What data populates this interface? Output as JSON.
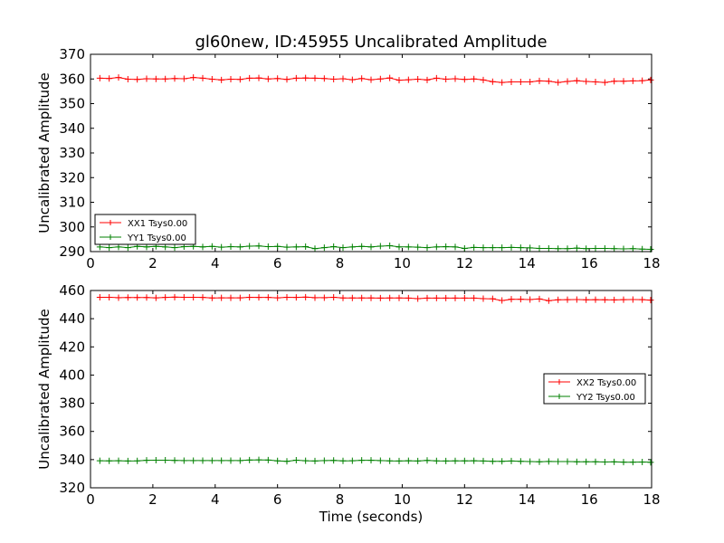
{
  "figure": {
    "title": "gl60new, ID:45955 Uncalibrated Amplitude"
  },
  "colors": {
    "series_red": "#ff0000",
    "series_green": "#008000",
    "frame": "#000000",
    "background": "#ffffff"
  },
  "chart_data": [
    {
      "type": "line",
      "title": "gl60new, ID:45955 Uncalibrated Amplitude",
      "xlabel": "",
      "ylabel": "Uncalibrated Amplitude",
      "xlim": [
        0,
        18
      ],
      "ylim": [
        290,
        370
      ],
      "xticks": [
        0,
        2,
        4,
        6,
        8,
        10,
        12,
        14,
        16,
        18
      ],
      "yticks": [
        290,
        300,
        310,
        320,
        330,
        340,
        350,
        360,
        370
      ],
      "grid": false,
      "legend_position": "lower-left",
      "marker": "+",
      "series": [
        {
          "name": "XX1 Tsys0.00",
          "color": "#ff0000",
          "x": [
            0.3,
            0.6,
            0.9,
            1.2,
            1.5,
            1.8,
            2.1,
            2.4,
            2.7,
            3.0,
            3.3,
            3.6,
            3.9,
            4.2,
            4.5,
            4.8,
            5.1,
            5.4,
            5.7,
            6.0,
            6.3,
            6.6,
            6.9,
            7.2,
            7.5,
            7.8,
            8.1,
            8.4,
            8.7,
            9.0,
            9.3,
            9.6,
            9.9,
            10.2,
            10.5,
            10.8,
            11.1,
            11.4,
            11.7,
            12.0,
            12.3,
            12.6,
            12.9,
            13.2,
            13.5,
            13.8,
            14.1,
            14.4,
            14.7,
            15.0,
            15.3,
            15.6,
            15.9,
            16.2,
            16.5,
            16.8,
            17.1,
            17.4,
            17.7,
            17.97
          ],
          "y": [
            360.3,
            360.2,
            360.6,
            359.9,
            359.8,
            360.1,
            360.0,
            360.0,
            360.2,
            360.1,
            360.6,
            360.3,
            359.9,
            359.6,
            359.9,
            359.8,
            360.3,
            360.4,
            360.0,
            360.2,
            359.8,
            360.3,
            360.4,
            360.3,
            360.2,
            359.9,
            360.1,
            359.7,
            360.2,
            359.7,
            360.0,
            360.4,
            359.5,
            359.7,
            359.9,
            359.6,
            360.3,
            359.9,
            360.1,
            359.8,
            360.0,
            359.6,
            358.9,
            358.6,
            358.8,
            358.8,
            358.8,
            359.2,
            359.1,
            358.6,
            359.0,
            359.3,
            359.0,
            358.8,
            358.6,
            359.1,
            359.1,
            359.2,
            359.3,
            359.6
          ]
        },
        {
          "name": "YY1 Tsys0.00",
          "color": "#008000",
          "x": [
            0.3,
            0.6,
            0.9,
            1.2,
            1.5,
            1.8,
            2.1,
            2.4,
            2.7,
            3.0,
            3.3,
            3.6,
            3.9,
            4.2,
            4.5,
            4.8,
            5.1,
            5.4,
            5.7,
            6.0,
            6.3,
            6.6,
            6.9,
            7.2,
            7.5,
            7.8,
            8.1,
            8.4,
            8.7,
            9.0,
            9.3,
            9.6,
            9.9,
            10.2,
            10.5,
            10.8,
            11.1,
            11.4,
            11.7,
            12.0,
            12.3,
            12.6,
            12.9,
            13.2,
            13.5,
            13.8,
            14.1,
            14.4,
            14.7,
            15.0,
            15.3,
            15.6,
            15.9,
            16.2,
            16.5,
            16.8,
            17.1,
            17.4,
            17.7,
            17.97
          ],
          "y": [
            291.9,
            291.6,
            291.9,
            291.6,
            292.1,
            291.9,
            292.1,
            291.9,
            291.6,
            292.0,
            292.1,
            291.9,
            292.1,
            291.8,
            292.0,
            291.9,
            292.2,
            292.3,
            292.0,
            292.1,
            291.8,
            291.9,
            292.0,
            291.2,
            291.6,
            292.0,
            291.6,
            291.9,
            292.1,
            291.9,
            292.2,
            292.4,
            291.9,
            291.9,
            291.8,
            291.6,
            291.9,
            292.0,
            291.9,
            291.3,
            291.7,
            291.6,
            291.6,
            291.6,
            291.7,
            291.6,
            291.5,
            291.3,
            291.3,
            291.2,
            291.2,
            291.4,
            291.2,
            291.3,
            291.3,
            291.2,
            291.1,
            291.2,
            291.0,
            290.9
          ]
        }
      ]
    },
    {
      "type": "line",
      "title": "",
      "xlabel": "Time (seconds)",
      "ylabel": "Uncalibrated Amplitude",
      "xlim": [
        0,
        18
      ],
      "ylim": [
        320,
        460
      ],
      "xticks": [
        0,
        2,
        4,
        6,
        8,
        10,
        12,
        14,
        16,
        18
      ],
      "yticks": [
        320,
        340,
        360,
        380,
        400,
        420,
        440,
        460
      ],
      "grid": false,
      "legend_position": "center-right",
      "marker": "+",
      "series": [
        {
          "name": "XX2 Tsys0.00",
          "color": "#ff0000",
          "x": [
            0.3,
            0.6,
            0.9,
            1.2,
            1.5,
            1.8,
            2.1,
            2.4,
            2.7,
            3.0,
            3.3,
            3.6,
            3.9,
            4.2,
            4.5,
            4.8,
            5.1,
            5.4,
            5.7,
            6.0,
            6.3,
            6.6,
            6.9,
            7.2,
            7.5,
            7.8,
            8.1,
            8.4,
            8.7,
            9.0,
            9.3,
            9.6,
            9.9,
            10.2,
            10.5,
            10.8,
            11.1,
            11.4,
            11.7,
            12.0,
            12.3,
            12.6,
            12.9,
            13.2,
            13.5,
            13.8,
            14.1,
            14.4,
            14.7,
            15.0,
            15.3,
            15.6,
            15.9,
            16.2,
            16.5,
            16.8,
            17.1,
            17.4,
            17.7,
            17.97
          ],
          "y": [
            455.2,
            455.2,
            454.9,
            455.0,
            455.0,
            455.0,
            454.8,
            455.1,
            455.3,
            455.2,
            455.2,
            455.1,
            454.7,
            454.8,
            454.8,
            454.8,
            455.2,
            455.1,
            455.1,
            454.8,
            455.2,
            455.1,
            455.3,
            454.9,
            454.9,
            455.2,
            454.7,
            454.7,
            454.7,
            454.7,
            454.6,
            454.7,
            454.7,
            454.6,
            454.2,
            454.6,
            454.6,
            454.6,
            454.6,
            454.6,
            454.6,
            454.2,
            454.1,
            452.9,
            453.8,
            453.8,
            453.6,
            454.0,
            452.8,
            453.4,
            453.5,
            453.6,
            453.4,
            453.5,
            453.4,
            453.3,
            453.5,
            453.6,
            453.5,
            453.2
          ]
        },
        {
          "name": "YY2 Tsys0.00",
          "color": "#008000",
          "x": [
            0.3,
            0.6,
            0.9,
            1.2,
            1.5,
            1.8,
            2.1,
            2.4,
            2.7,
            3.0,
            3.3,
            3.6,
            3.9,
            4.2,
            4.5,
            4.8,
            5.1,
            5.4,
            5.7,
            6.0,
            6.3,
            6.6,
            6.9,
            7.2,
            7.5,
            7.8,
            8.1,
            8.4,
            8.7,
            9.0,
            9.3,
            9.6,
            9.9,
            10.2,
            10.5,
            10.8,
            11.1,
            11.4,
            11.7,
            12.0,
            12.3,
            12.6,
            12.9,
            13.2,
            13.5,
            13.8,
            14.1,
            14.4,
            14.7,
            15.0,
            15.3,
            15.6,
            15.9,
            16.2,
            16.5,
            16.8,
            17.1,
            17.4,
            17.7,
            17.97
          ],
          "y": [
            339.2,
            339.1,
            339.2,
            339.0,
            339.1,
            339.5,
            339.6,
            339.6,
            339.4,
            339.3,
            339.3,
            339.3,
            339.3,
            339.3,
            339.3,
            339.3,
            339.7,
            339.8,
            339.7,
            339.1,
            338.8,
            339.6,
            339.2,
            339.0,
            339.3,
            339.4,
            339.1,
            339.2,
            339.5,
            339.5,
            339.3,
            339.1,
            339.0,
            339.2,
            339.0,
            339.4,
            339.1,
            339.0,
            339.1,
            339.1,
            339.2,
            339.0,
            338.8,
            338.8,
            339.0,
            338.8,
            338.6,
            338.5,
            338.7,
            338.6,
            338.6,
            338.5,
            338.5,
            338.5,
            338.3,
            338.4,
            338.2,
            338.2,
            338.3,
            338.1
          ]
        }
      ]
    }
  ]
}
